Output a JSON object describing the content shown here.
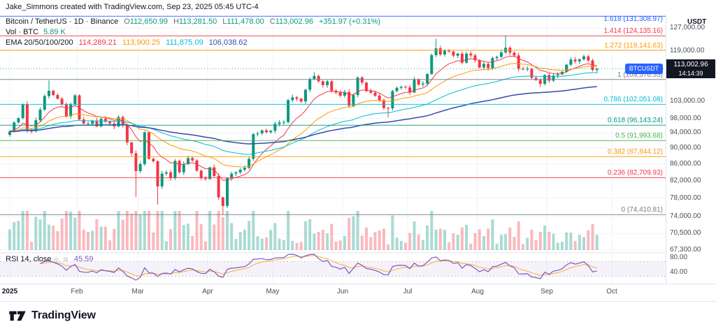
{
  "page": {
    "attribution": "Jake_Simmons created with TradingView.com, Sep 23, 2025 05:45 UTC-4",
    "axis_currency": "USDT",
    "brand": "TradingView"
  },
  "legend": {
    "symbol_title": "Bitcoin / TetherUS · 1D · Binance",
    "o_label": "O",
    "o": "112,650.99",
    "h_label": "H",
    "h": "113,281.50",
    "l_label": "L",
    "l": "111,478.00",
    "c_label": "C",
    "c": "113,002.96",
    "change": "+351.97 (+0.31%)",
    "vol_label": "Vol · BTC",
    "vol_value": "5.89 K",
    "ema_label": "EMA 20/50/100/200",
    "ema_values": [
      "114,289.21",
      "113,900.25",
      "111,875.09",
      "106,038.62"
    ],
    "rsi_label": "RSI 14, close",
    "rsi_value": "45.59"
  },
  "price_badge": {
    "symbol": "BTCUSDT",
    "price": "113,002.96",
    "countdown": "14:14:39"
  },
  "chart_data": {
    "type": "candlestick",
    "symbol": "BTCUSDT",
    "exchange": "Binance",
    "interval": "1D",
    "scale": "log",
    "x_range": "Jan 2025 - Sep 23 2025",
    "points_interval_days": 2,
    "last": {
      "open": 112650.99,
      "high": 113281.5,
      "low": 111478.0,
      "close": 113002.96,
      "change": 351.97,
      "change_pct": 0.31,
      "volume_btc": "5.89 K",
      "rsi": 45.59
    },
    "ema_current": {
      "ema20": 114289.21,
      "ema50": 113900.25,
      "ema100": 111875.09,
      "ema200": 106038.62
    },
    "closes": [
      94400,
      96900,
      98100,
      102100,
      94600,
      94500,
      97500,
      100500,
      104500,
      106100,
      104800,
      103700,
      102100,
      98600,
      102100,
      104700,
      97700,
      96600,
      96500,
      97400,
      95800,
      97900,
      97100,
      96600,
      95800,
      98400,
      96100,
      91500,
      88700,
      84300,
      86000,
      94200,
      87300,
      86700,
      80700,
      83700,
      84000,
      82600,
      86800,
      84000,
      86000,
      87500,
      86900,
      84400,
      82600,
      82400,
      85200,
      83100,
      78200,
      76300,
      82600,
      83700,
      84000,
      84600,
      85100,
      87300,
      93700,
      93900,
      94700,
      94200,
      94600,
      96500,
      96900,
      97000,
      103300,
      104100,
      103700,
      102900,
      106400,
      109700,
      110700,
      109000,
      107800,
      109000,
      106100,
      105600,
      104600,
      105700,
      101600,
      104800,
      110200,
      108600,
      106000,
      105500,
      104600,
      103300,
      101000,
      100900,
      106000,
      107000,
      107300,
      107100,
      105600,
      109600,
      108000,
      108300,
      111300,
      117500,
      119800,
      117700,
      119000,
      118700,
      117300,
      118000,
      115000,
      118000,
      117400,
      115800,
      113400,
      114600,
      113200,
      116500,
      116900,
      118400,
      120000,
      118300,
      117400,
      113000,
      112800,
      113000,
      110100,
      109400,
      108200,
      111000,
      109200,
      110800,
      111200,
      112000,
      114300,
      116000,
      115400,
      116100,
      117100,
      115700,
      112600,
      113000
    ],
    "wick_overrides": {
      "0": {
        "open": 93500
      },
      "9": {
        "high": 109300
      },
      "29": {
        "low": 78300
      },
      "34": {
        "low": 76600
      },
      "49": {
        "low": 74410
      },
      "70": {
        "high": 111900
      },
      "87": {
        "low": 98300
      },
      "98": {
        "high": 123200
      },
      "114": {
        "high": 124300
      },
      "122": {
        "low": 107200
      },
      "135": {
        "high": 113281,
        "low": 111478
      }
    },
    "price_axis": [
      {
        "label": "127,000.00",
        "price": 127000
      },
      {
        "label": "119,000.00",
        "price": 119000
      },
      {
        "label": "103,000.00",
        "price": 103000
      },
      {
        "label": "98,000.00",
        "price": 98000
      },
      {
        "label": "94,000.00",
        "price": 94000
      },
      {
        "label": "90,000.00",
        "price": 90000
      },
      {
        "label": "86,000.00",
        "price": 86000
      },
      {
        "label": "82,000.00",
        "price": 82000
      },
      {
        "label": "78,000.00",
        "price": 78000
      },
      {
        "label": "74,000.00",
        "price": 74000
      },
      {
        "label": "70,500.00",
        "price": 70500
      },
      {
        "label": "67,300.00",
        "price": 67300
      }
    ],
    "rsi_axis": [
      {
        "label": "80.00",
        "value": 80
      },
      {
        "label": "40.00",
        "value": 40
      }
    ],
    "rsi_bands": [
      70,
      30
    ],
    "x_ticks": [
      {
        "label": "2025",
        "i": 0,
        "bold": true
      },
      {
        "label": "Feb",
        "i": 15.5
      },
      {
        "label": "Mar",
        "i": 29.5
      },
      {
        "label": "Apr",
        "i": 45.5
      },
      {
        "label": "May",
        "i": 60.5
      },
      {
        "label": "Jun",
        "i": 76.5
      },
      {
        "label": "Jul",
        "i": 91.5
      },
      {
        "label": "Aug",
        "i": 107.5
      },
      {
        "label": "Sep",
        "i": 123.5
      },
      {
        "label": "Oct",
        "i": 138.5
      }
    ],
    "fib_levels": [
      {
        "label": "1.618 (131,308.97)",
        "price": 131308.97,
        "color": "#2962ff"
      },
      {
        "label": "1.414 (124,135.16)",
        "price": 124135.16,
        "color": "#f23645"
      },
      {
        "label": "1.272 (119,141.63)",
        "price": 119141.63,
        "color": "#ff9800"
      },
      {
        "label": "1 (109,576.55)",
        "price": 109576.55,
        "color": "#787b86"
      },
      {
        "label": "0.786 (102,051.08)",
        "price": 102051.08,
        "color": "#00bcd4"
      },
      {
        "label": "0.618 (96,143.24)",
        "price": 96143.24,
        "color": "#089981"
      },
      {
        "label": "0.5 (91,993.68)",
        "price": 91993.68,
        "color": "#4caf50"
      },
      {
        "label": "0.382 (87,844.12)",
        "price": 87844.12,
        "color": "#ff9800"
      },
      {
        "label": "0.236 (82,709.93)",
        "price": 82709.93,
        "color": "#f23645"
      },
      {
        "label": "0 (74,410.81)",
        "price": 74410.81,
        "color": "#787b86"
      }
    ],
    "colors": {
      "up": "#089981",
      "down": "#f23645",
      "vol_up": "rgba(8,153,129,0.35)",
      "vol_down": "rgba(242,54,69,0.35)",
      "grid": "#f0f3fa",
      "separator": "#e0e3eb",
      "ema": [
        "#f23645",
        "#ff9800",
        "#00bcd4",
        "#3949ab"
      ],
      "rsi": "#7e57c2",
      "rsi_ma": "#f2b236",
      "rsi_band": "rgba(126,87,194,0.08)",
      "last_price": "#089981",
      "badge_bg": "#131722",
      "pill_bg": "#2962ff"
    }
  }
}
